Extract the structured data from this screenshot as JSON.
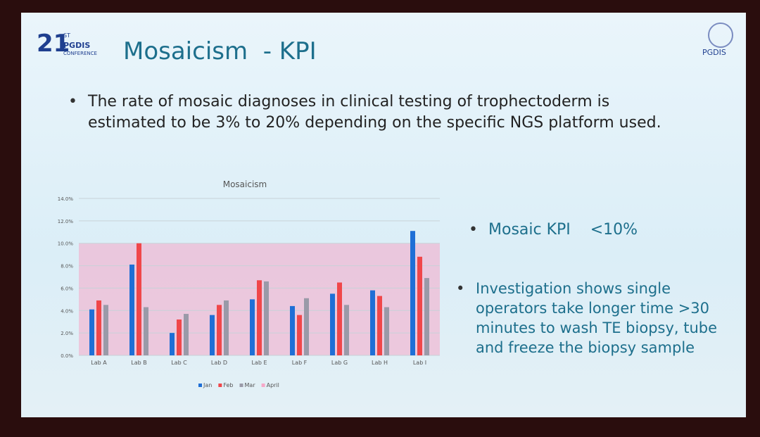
{
  "slide": {
    "title": "Mosaicism  - KPI",
    "logo_number": "21",
    "logo_suffix": "ST",
    "logo_name": "PGDIS",
    "logo_subtitle": "CONFERENCE",
    "organization": "PGDIS",
    "bullets": [
      "The rate of mosaic diagnoses in clinical testing of trophectoderm is estimated to be 3% to 20% depending on the specific NGS platform used."
    ],
    "side_bullets": [
      "Mosaic KPI    <10%",
      "Investigation shows single operators take longer time >30 minutes to wash TE biopsy, tube and freeze the biopsy sample"
    ]
  },
  "chart_data": {
    "type": "bar",
    "title": "Mosaicism",
    "categories": [
      "Lab A",
      "Lab B",
      "Lab C",
      "Lab D",
      "Lab E",
      "Lab F",
      "Lab G",
      "Lab H",
      "Lab I"
    ],
    "series": [
      {
        "name": "Jan",
        "color": "#1f6fd6",
        "values": [
          4.1,
          8.1,
          2.0,
          3.6,
          5.0,
          4.4,
          5.5,
          5.8,
          11.1
        ]
      },
      {
        "name": "Feb",
        "color": "#f0474a",
        "values": [
          4.9,
          10.0,
          3.2,
          4.5,
          6.7,
          3.6,
          6.5,
          5.3,
          8.8
        ]
      },
      {
        "name": "Mar",
        "color": "#9a9aa8",
        "values": [
          4.5,
          4.3,
          3.7,
          4.9,
          6.6,
          5.1,
          4.5,
          4.3,
          6.9
        ]
      },
      {
        "name": "April",
        "color": "#f6a8c8",
        "type": "area",
        "values": [
          10,
          10,
          10,
          10,
          10,
          10,
          10,
          10,
          10
        ]
      }
    ],
    "ylim": [
      0,
      14
    ],
    "yticks": [
      {
        "value": 0,
        "label": "0.0%"
      },
      {
        "value": 2,
        "label": "2.0%"
      },
      {
        "value": 4,
        "label": "4.0%"
      },
      {
        "value": 6,
        "label": "6.0%"
      },
      {
        "value": 8,
        "label": "8.0%"
      },
      {
        "value": 10,
        "label": "10.0%"
      },
      {
        "value": 12,
        "label": "12.0%"
      },
      {
        "value": 14,
        "label": "14.0%"
      }
    ],
    "grid": true,
    "legend": "bottom"
  }
}
